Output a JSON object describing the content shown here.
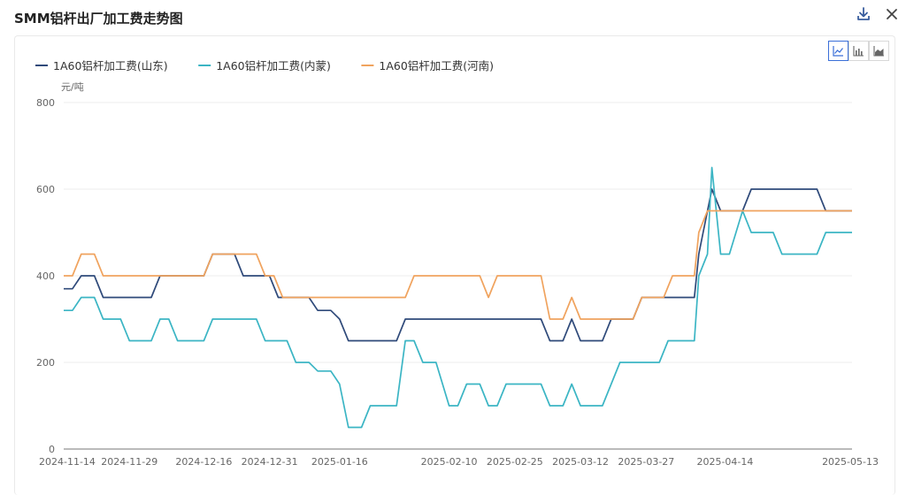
{
  "page": {
    "title": "SMM铝杆出厂加工费走势图",
    "download_icon": "download-icon",
    "close_icon": "close-icon",
    "chart_type_buttons": [
      "line-chart-icon",
      "bar-chart-icon",
      "area-chart-icon"
    ],
    "active_chart_type": "line"
  },
  "chart_data": {
    "type": "line",
    "unit_label": "元/吨",
    "xlabel": "",
    "ylabel": "",
    "ylim": [
      0,
      800
    ],
    "y_ticks": [
      0,
      200,
      400,
      600,
      800
    ],
    "x_range": [
      "2024-11-14",
      "2025-05-13"
    ],
    "x_ticks": [
      "2024-11-14",
      "2024-11-29",
      "2024-12-16",
      "2024-12-31",
      "2025-01-16",
      "2025-02-10",
      "2025-02-25",
      "2025-03-12",
      "2025-03-27",
      "2025-04-14",
      "2025-05-13"
    ],
    "grid": true,
    "legend": "top-left",
    "series": [
      {
        "name": "1A60铝杆加工费(山东)",
        "color": "#2f4a7a",
        "points": [
          [
            "2024-11-14",
            370
          ],
          [
            "2024-11-16",
            370
          ],
          [
            "2024-11-18",
            400
          ],
          [
            "2024-11-21",
            400
          ],
          [
            "2024-11-23",
            350
          ],
          [
            "2024-12-04",
            350
          ],
          [
            "2024-12-06",
            400
          ],
          [
            "2024-12-16",
            400
          ],
          [
            "2024-12-18",
            450
          ],
          [
            "2024-12-23",
            450
          ],
          [
            "2024-12-25",
            400
          ],
          [
            "2024-12-31",
            400
          ],
          [
            "2025-01-02",
            350
          ],
          [
            "2025-01-09",
            350
          ],
          [
            "2025-01-11",
            320
          ],
          [
            "2025-01-14",
            320
          ],
          [
            "2025-01-16",
            300
          ],
          [
            "2025-01-18",
            250
          ],
          [
            "2025-01-29",
            250
          ],
          [
            "2025-01-31",
            300
          ],
          [
            "2025-03-03",
            300
          ],
          [
            "2025-03-05",
            250
          ],
          [
            "2025-03-08",
            250
          ],
          [
            "2025-03-10",
            300
          ],
          [
            "2025-03-12",
            250
          ],
          [
            "2025-03-17",
            250
          ],
          [
            "2025-03-19",
            300
          ],
          [
            "2025-03-24",
            300
          ],
          [
            "2025-03-26",
            350
          ],
          [
            "2025-04-07",
            350
          ],
          [
            "2025-04-08",
            450
          ],
          [
            "2025-04-09",
            500
          ],
          [
            "2025-04-11",
            600
          ],
          [
            "2025-04-13",
            550
          ],
          [
            "2025-04-18",
            550
          ],
          [
            "2025-04-20",
            600
          ],
          [
            "2025-05-05",
            600
          ],
          [
            "2025-05-07",
            550
          ],
          [
            "2025-05-13",
            550
          ]
        ]
      },
      {
        "name": "1A60铝杆加工费(内蒙)",
        "color": "#3bb5c4",
        "points": [
          [
            "2024-11-14",
            320
          ],
          [
            "2024-11-16",
            320
          ],
          [
            "2024-11-18",
            350
          ],
          [
            "2024-11-21",
            350
          ],
          [
            "2024-11-23",
            300
          ],
          [
            "2024-11-27",
            300
          ],
          [
            "2024-11-29",
            250
          ],
          [
            "2024-12-04",
            250
          ],
          [
            "2024-12-06",
            300
          ],
          [
            "2024-12-08",
            300
          ],
          [
            "2024-12-10",
            250
          ],
          [
            "2024-12-16",
            250
          ],
          [
            "2024-12-18",
            300
          ],
          [
            "2024-12-28",
            300
          ],
          [
            "2024-12-30",
            250
          ],
          [
            "2025-01-04",
            250
          ],
          [
            "2025-01-06",
            200
          ],
          [
            "2025-01-09",
            200
          ],
          [
            "2025-01-11",
            180
          ],
          [
            "2025-01-14",
            180
          ],
          [
            "2025-01-16",
            150
          ],
          [
            "2025-01-18",
            50
          ],
          [
            "2025-01-21",
            50
          ],
          [
            "2025-01-23",
            100
          ],
          [
            "2025-01-29",
            100
          ],
          [
            "2025-01-31",
            250
          ],
          [
            "2025-02-02",
            250
          ],
          [
            "2025-02-04",
            200
          ],
          [
            "2025-02-07",
            200
          ],
          [
            "2025-02-10",
            100
          ],
          [
            "2025-02-12",
            100
          ],
          [
            "2025-02-14",
            150
          ],
          [
            "2025-02-17",
            150
          ],
          [
            "2025-02-19",
            100
          ],
          [
            "2025-02-21",
            100
          ],
          [
            "2025-02-23",
            150
          ],
          [
            "2025-03-03",
            150
          ],
          [
            "2025-03-05",
            100
          ],
          [
            "2025-03-08",
            100
          ],
          [
            "2025-03-10",
            150
          ],
          [
            "2025-03-12",
            100
          ],
          [
            "2025-03-17",
            100
          ],
          [
            "2025-03-21",
            200
          ],
          [
            "2025-03-30",
            200
          ],
          [
            "2025-04-01",
            250
          ],
          [
            "2025-04-07",
            250
          ],
          [
            "2025-04-08",
            400
          ],
          [
            "2025-04-10",
            450
          ],
          [
            "2025-04-11",
            650
          ],
          [
            "2025-04-13",
            450
          ],
          [
            "2025-04-15",
            450
          ],
          [
            "2025-04-18",
            550
          ],
          [
            "2025-04-20",
            500
          ],
          [
            "2025-04-25",
            500
          ],
          [
            "2025-04-27",
            450
          ],
          [
            "2025-05-05",
            450
          ],
          [
            "2025-05-07",
            500
          ],
          [
            "2025-05-13",
            500
          ]
        ]
      },
      {
        "name": "1A60铝杆加工费(河南)",
        "color": "#f0a35e",
        "points": [
          [
            "2024-11-14",
            400
          ],
          [
            "2024-11-16",
            400
          ],
          [
            "2024-11-18",
            450
          ],
          [
            "2024-11-21",
            450
          ],
          [
            "2024-11-23",
            400
          ],
          [
            "2024-12-16",
            400
          ],
          [
            "2024-12-18",
            450
          ],
          [
            "2024-12-28",
            450
          ],
          [
            "2024-12-30",
            400
          ],
          [
            "2025-01-01",
            400
          ],
          [
            "2025-01-03",
            350
          ],
          [
            "2025-01-31",
            350
          ],
          [
            "2025-02-02",
            400
          ],
          [
            "2025-02-17",
            400
          ],
          [
            "2025-02-19",
            350
          ],
          [
            "2025-02-21",
            400
          ],
          [
            "2025-03-03",
            400
          ],
          [
            "2025-03-05",
            300
          ],
          [
            "2025-03-08",
            300
          ],
          [
            "2025-03-10",
            350
          ],
          [
            "2025-03-12",
            300
          ],
          [
            "2025-03-24",
            300
          ],
          [
            "2025-03-26",
            350
          ],
          [
            "2025-03-31",
            350
          ],
          [
            "2025-04-02",
            400
          ],
          [
            "2025-04-07",
            400
          ],
          [
            "2025-04-08",
            500
          ],
          [
            "2025-04-10",
            550
          ],
          [
            "2025-05-13",
            550
          ]
        ]
      }
    ]
  }
}
